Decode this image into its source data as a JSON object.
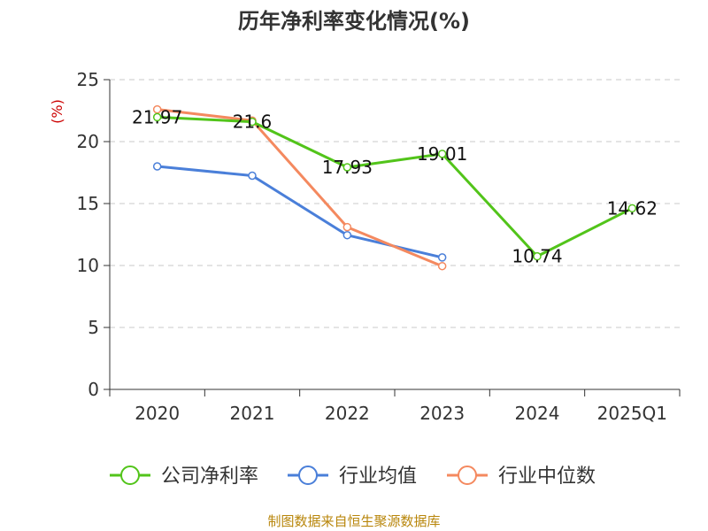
{
  "chart_data": {
    "type": "line",
    "title": "历年净利率变化情况(%)",
    "ylabel": "(%)",
    "xlabel": "",
    "categories": [
      "2020",
      "2021",
      "2022",
      "2023",
      "2024",
      "2025Q1"
    ],
    "ylim": [
      0,
      25
    ],
    "yticks": [
      0,
      5,
      10,
      15,
      20,
      25
    ],
    "grid": "horizontal-dashed",
    "legend_position": "bottom",
    "series": [
      {
        "name": "公司净利率",
        "color": "#52c41a",
        "values": [
          21.97,
          21.6,
          17.93,
          19.01,
          10.74,
          14.62
        ],
        "labels": [
          "21.97",
          "21.6",
          "17.93",
          "19.01",
          "10.74",
          "14.62"
        ]
      },
      {
        "name": "行业均值",
        "color": "#4a7fd9",
        "values": [
          18.0,
          17.25,
          12.45,
          10.65,
          null,
          null
        ]
      },
      {
        "name": "行业中位数",
        "color": "#f4895f",
        "values": [
          22.6,
          21.7,
          13.1,
          9.95,
          null,
          null
        ]
      }
    ]
  },
  "footer": {
    "source": "制图数据来自恒生聚源数据库"
  }
}
